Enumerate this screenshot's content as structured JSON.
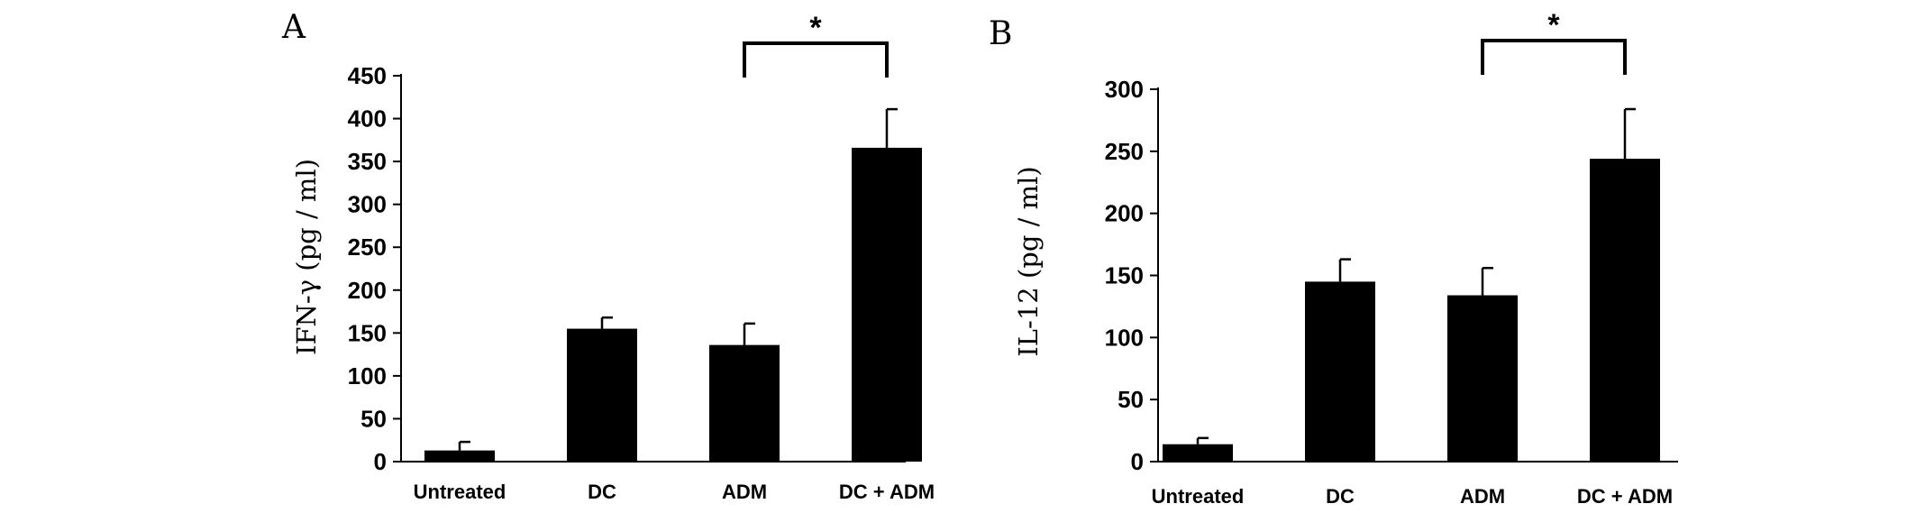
{
  "chart_data": [
    {
      "type": "bar",
      "panel": "A",
      "title": "",
      "xlabel": "",
      "ylabel": "IFN-γ (pg / ml)",
      "categories": [
        "Untreated",
        "DC",
        "ADM",
        "DC + ADM"
      ],
      "values": [
        13,
        155,
        136,
        366
      ],
      "errors": [
        10,
        13,
        25,
        45
      ],
      "ylim": [
        0,
        450
      ],
      "yticks": [
        "0",
        "50",
        "100",
        "150",
        "200",
        "250",
        "300",
        "350",
        "400",
        "450"
      ],
      "bar_color": "#000000",
      "grid": false,
      "significance": {
        "between": [
          "ADM",
          "DC + ADM"
        ],
        "label": "*"
      }
    },
    {
      "type": "bar",
      "panel": "B",
      "title": "",
      "xlabel": "",
      "ylabel": "IL-12  (pg / ml)",
      "categories": [
        "Untreated",
        "DC",
        "ADM",
        "DC + ADM"
      ],
      "values": [
        14,
        145,
        134,
        244
      ],
      "errors": [
        5,
        18,
        22,
        40
      ],
      "ylim": [
        0,
        300
      ],
      "yticks": [
        "0",
        "50",
        "100",
        "150",
        "200",
        "250",
        "300"
      ],
      "bar_color": "#000000",
      "grid": false,
      "significance": {
        "between": [
          "ADM",
          "DC + ADM"
        ],
        "label": "*"
      }
    }
  ]
}
